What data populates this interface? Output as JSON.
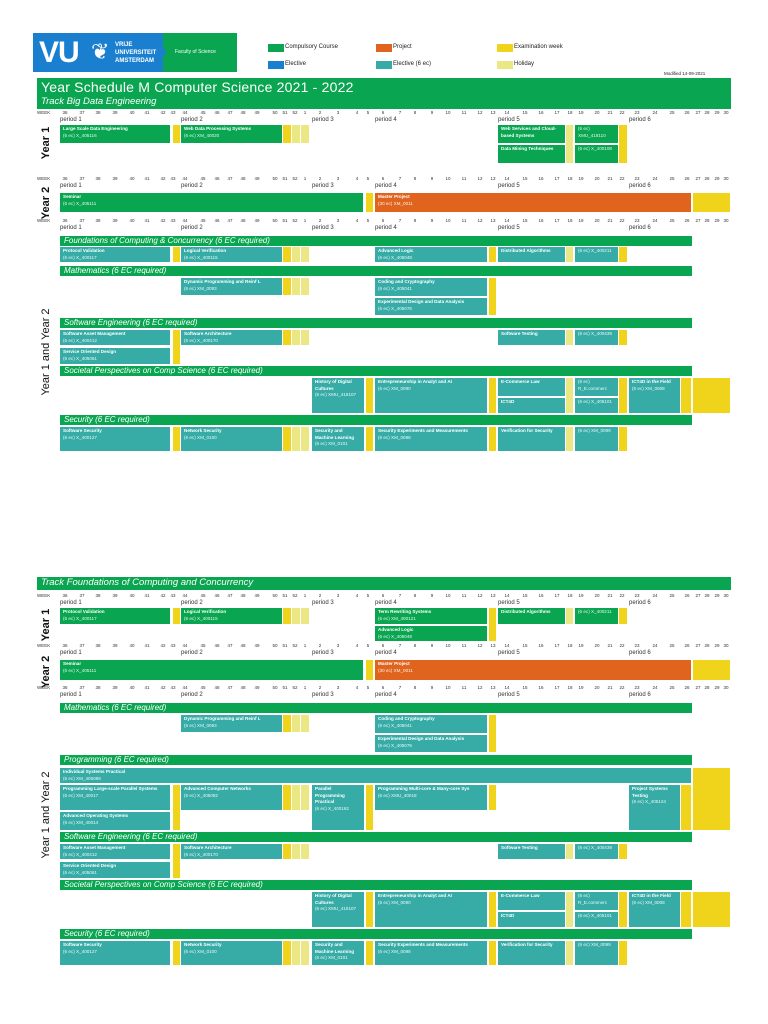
{
  "header": {
    "logo_text": "VU",
    "university": [
      "VRIJE",
      "UNIVERSITEIT",
      "AMSTERDAM"
    ],
    "faculty": "Faculty of Science",
    "legend": [
      {
        "label": "Compulsory Course",
        "color": "#0aa550"
      },
      {
        "label": "Project",
        "color": "#e0641e"
      },
      {
        "label": "Examination week",
        "color": "#f0d41c"
      },
      {
        "label": "Elective",
        "color": "#1b7fd0"
      },
      {
        "label": "Elective (6 ec)",
        "color": "#37aca7"
      },
      {
        "label": "Holiday",
        "color": "#ece785"
      }
    ],
    "modified": "Modified 14-09-2021"
  },
  "title": "Year Schedule M Computer Science 2021 - 2022",
  "week_label": "WEEK",
  "weeks": [
    "36",
    "37",
    "38",
    "39",
    "40",
    "41",
    "42",
    "43",
    "44",
    "45",
    "46",
    "47",
    "48",
    "49",
    "50",
    "51",
    "52",
    "1",
    "2",
    "3",
    "4",
    "5",
    "6",
    "7",
    "8",
    "9",
    "10",
    "11",
    "12",
    "13",
    "14",
    "15",
    "16",
    "17",
    "18",
    "19",
    "20",
    "21",
    "22",
    "23",
    "24",
    "25",
    "26",
    "27",
    "28",
    "29",
    "30"
  ],
  "periods": [
    "period 1",
    "period 2",
    "period 3",
    "period 4",
    "period 5",
    "period 6"
  ],
  "labels": {
    "year1": "Year 1",
    "year2": "Year 2",
    "both": "Year 1 and Year 2"
  },
  "t1": {
    "subtitle": "Track Big Data Engineering",
    "year1": {
      "lsde": {
        "name": "Large Scale Data Engineering",
        "code": "(6 ec) X_405116"
      },
      "wdps": {
        "name": "Web Data Processing Systems",
        "code": "(6 ec) XM_40020"
      },
      "wscbs": {
        "name": "Web Services and Cloud-based Systems"
      },
      "wscbs_code": {
        "code": "(6 ec) XMU_418110"
      },
      "dmt": {
        "name": "Data Mining Techniques"
      },
      "dmt_code": {
        "code": "(6 ec) X_400108"
      }
    },
    "year2": {
      "seminar": {
        "name": "Seminar",
        "code": "(6 ec) X_405111"
      },
      "master": {
        "name": "Master Project",
        "code": "(30 ec) XM_0011"
      }
    }
  },
  "t2": {
    "title": "Track Foundations of Computing and Concurrency",
    "year1": {
      "pv": {
        "name": "Protocol Validation",
        "code": "(6 ec) X_400117"
      },
      "lv": {
        "name": "Logical Verification",
        "code": "(6 ec) X_400115"
      },
      "trs": {
        "name": "Term Rewriting Systems",
        "code": "(6 ec) XM_400121"
      },
      "al": {
        "name": "Advanced Logic",
        "code": "(6 ec) X_405048"
      },
      "da": {
        "name": "Distributed Algorithms"
      },
      "da_code": {
        "code": "(6 ec) X_400211"
      }
    }
  },
  "sections": {
    "foundations": {
      "title": "Foundations of Computing & Concurrency (6 EC required)",
      "pv": {
        "name": "Protocol Validation",
        "code": "(6 ec) X_400117"
      },
      "lv": {
        "name": "Logical Verification",
        "code": "(6 ec) X_400115"
      },
      "al": {
        "name": "Advanced Logic",
        "code": "(6 ec) X_405048"
      },
      "da": {
        "name": "Distributed Algorithms"
      },
      "da_code": {
        "code": "(6 ec) X_400211"
      }
    },
    "math": {
      "title": "Mathematics (6 EC required)",
      "dp": {
        "name": "Dynamic Programming and Reinf L",
        "code": "(6 ec) XM_0093"
      },
      "cc": {
        "name": "Coding and Cryptography",
        "code": "(6 ec) X_405041"
      },
      "edda": {
        "name": "Experimental Design and Data Analysis",
        "code": "(6 ec) X_405076"
      }
    },
    "prog": {
      "title": "Programming (6 EC required)",
      "isp": {
        "name": "Individual Systems Practical",
        "code": "(6 ec) XM_405088"
      },
      "pls": {
        "name": "Programming Large-scale Parallel Systems",
        "code": "(6 ec) XM_40017"
      },
      "aos": {
        "name": "Advanced Operating Systems",
        "code": "(6 ec) XM_40014"
      },
      "acn": {
        "name": "Advanced Computer Networks",
        "code": "(6 ec) X_405082"
      },
      "ppp": {
        "name": "Parallel Programming Practical",
        "code": "(6 ec) X_400162"
      },
      "mc": {
        "name": "Programming Multi-core & Many-core Sys",
        "code": "(6 ec) XMU_40018"
      },
      "pst": {
        "name": "Project Systems Testing",
        "code": "(6 ec) X_405124"
      }
    },
    "se": {
      "title": "Software Engineering (6 EC required)",
      "sam": {
        "name": "Software Asset Management",
        "code": "(6 ec) X_400412"
      },
      "sod": {
        "name": "Service Oriented Design",
        "code": "(6 ec) X_405061"
      },
      "sa": {
        "name": "Software Architecture",
        "code": "(6 ec) X_400170"
      },
      "st": {
        "name": "Software Testing"
      },
      "st_code": {
        "code": "(6 ec) X_400439"
      }
    },
    "soc": {
      "title": "Societal Perspectives on Comp Science (6 EC required)",
      "hdc": {
        "name": "History of Digital Cultures",
        "code": "(6 ec) XMU_418107"
      },
      "ent": {
        "name": "Entrepreneurship in Analyt and AI",
        "code": "(6 ec) XM_0090"
      },
      "ecl": {
        "name": "E-Commerce Law"
      },
      "ecl_code": {
        "code": "(6 ec) R_E.commerc"
      },
      "ict4d": {
        "name": "ICT4D"
      },
      "ict4d_code": {
        "code": "(6 ec) X_405101"
      },
      "ict4df": {
        "name": "ICT4D in the Field",
        "code": "(6 ec) XM_0008"
      }
    },
    "sec": {
      "title": "Security (6 EC required)",
      "ss": {
        "name": "Software Security",
        "code": "(6 ec) X_400127"
      },
      "ns": {
        "name": "Network Security",
        "code": "(6 ec) XM_0100"
      },
      "sml": {
        "name": "Security and Machine Learning",
        "code": "(6 ec) XM_0101"
      },
      "sem": {
        "name": "Security Experiments and Measurements",
        "code": "(6 ec) XM_0098"
      },
      "vs": {
        "name": "Verification for Security"
      },
      "vs_code": {
        "code": "(6 ec) XM_0099"
      }
    }
  }
}
